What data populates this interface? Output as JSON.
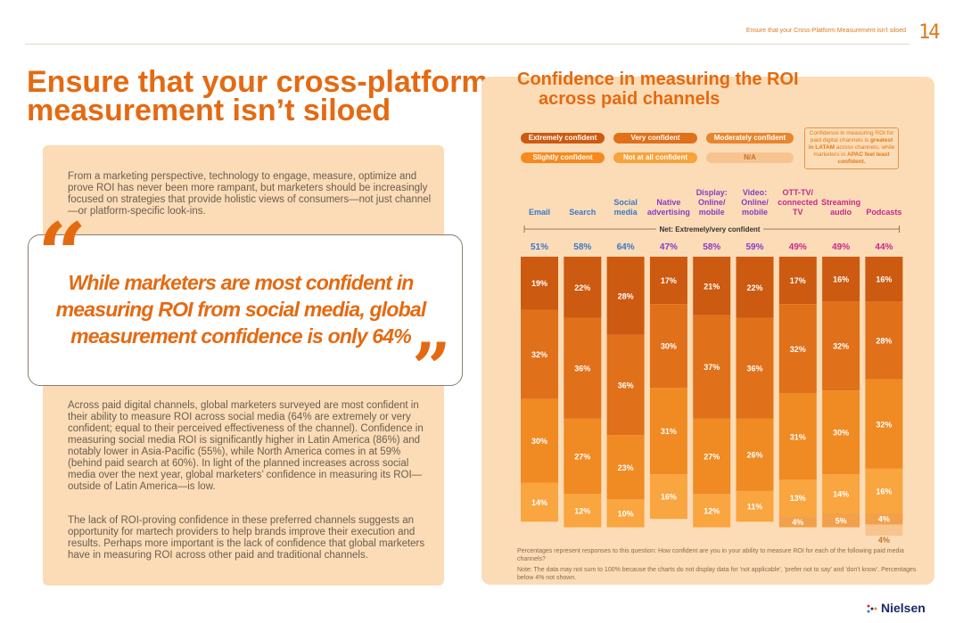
{
  "header": {
    "text": "Ensure that your Cross-Platform Measurement isn't siloed",
    "page_number": "14"
  },
  "left": {
    "title": "Ensure that your cross-platform measurement isn’t siloed",
    "intro": "From a marketing perspective, technology to engage, measure, optimize and prove ROI has never been more rampant, but marketers should be increasingly focused on strategies that provide holistic views of consumers—not just channel—or platform-specific look-ins.",
    "quote": "While marketers are most confident in measuring ROI from social media, global measurement confidence is only 64%",
    "body1": "Across paid digital channels, global marketers surveyed are most confident in their ability to measure ROI across social media (64% are extremely or very confident; equal to their perceived effectiveness of the channel). Confidence in measuring social media ROI is significantly higher in Latin America (86%) and notably lower in Asia-Pacific (55%), while North America comes in at 59% (behind paid search at 60%). In light of the planned increases across social media over the next year, global marketers’ confidence in measuring its ROI—outside of Latin America—is low.",
    "body2": "The lack of ROI-proving confidence in these preferred channels suggests an opportunity for martech providers to help brands improve their execution and results. Perhaps more important is the lack of confidence that global marketers have in measuring ROI across other paid and traditional channels."
  },
  "chart_data": {
    "type": "bar",
    "stacked": true,
    "title_line1": "Confidence in measuring the ROI",
    "title_line2": "across paid channels",
    "categories": [
      [
        "Email"
      ],
      [
        "Search"
      ],
      [
        "Social",
        "media"
      ],
      [
        "Native",
        "advertising"
      ],
      [
        "Display:",
        "Online/",
        "mobile"
      ],
      [
        "Video:",
        "Online/",
        "mobile"
      ],
      [
        "OTT-TV/",
        "connected",
        "TV"
      ],
      [
        "Streaming",
        "audio"
      ],
      [
        "Podcasts"
      ]
    ],
    "category_colors": [
      "#3a78c8",
      "#3a78c8",
      "#3a78c8",
      "#8a3ac8",
      "#8a3ac8",
      "#8a3ac8",
      "#c8288a",
      "#c8288a",
      "#c8288a"
    ],
    "net_label": "Net: Extremely/very confident",
    "net_values": [
      "51%",
      "58%",
      "64%",
      "47%",
      "58%",
      "59%",
      "49%",
      "49%",
      "44%"
    ],
    "series": [
      {
        "name": "Extremely confident",
        "color": "#cc5a10",
        "values": [
          19,
          22,
          28,
          17,
          21,
          22,
          17,
          16,
          16
        ]
      },
      {
        "name": "Very confident",
        "color": "#e0701a",
        "values": [
          32,
          36,
          36,
          30,
          37,
          36,
          32,
          32,
          28
        ]
      },
      {
        "name": "Moderately confident",
        "color": "#f08a22",
        "values": [
          30,
          27,
          23,
          31,
          27,
          26,
          31,
          30,
          32
        ]
      },
      {
        "name": "Slightly confident",
        "color": "#f9a540",
        "values": [
          14,
          12,
          10,
          16,
          12,
          11,
          13,
          14,
          16
        ]
      },
      {
        "name": "Not at all confident",
        "color": "#f2a04a",
        "values": [
          null,
          null,
          null,
          null,
          null,
          null,
          4,
          5,
          4
        ]
      },
      {
        "name": "N/A",
        "color": "#f7c490",
        "values": [
          null,
          null,
          null,
          null,
          null,
          null,
          null,
          null,
          4
        ]
      }
    ],
    "value_suffix": "%"
  },
  "legend_layout": [
    {
      "name": "Extremely confident",
      "color": "#cc5a10"
    },
    {
      "name": "Very confident",
      "color": "#e0701a"
    },
    {
      "name": "Moderately confident",
      "color": "#e8862e"
    },
    {
      "name": "Slightly confident",
      "color": "#f58a1e"
    },
    {
      "name": "Not at all confident",
      "color": "#f7a23a"
    },
    {
      "name": "N/A",
      "color": "#f7c490"
    }
  ],
  "callout": {
    "pre": "Confidence in measuring ROI for paid digital channels is ",
    "bold": "greatest in LATAM",
    "post": " across channels, while marketers in ",
    "bold2": "APAC feel least confident."
  },
  "notes": {
    "line1": "Percentages represent responses to this question: How confident are you in your ability to measure ROI for each of the following paid media channels?",
    "line2": "Note: The data may not sum to 100% because the charts do not display data for 'not applicable', 'prefer not to say' and 'don't know'. Percentages below 4% not shown."
  },
  "brand": {
    "name": "Nielsen"
  }
}
